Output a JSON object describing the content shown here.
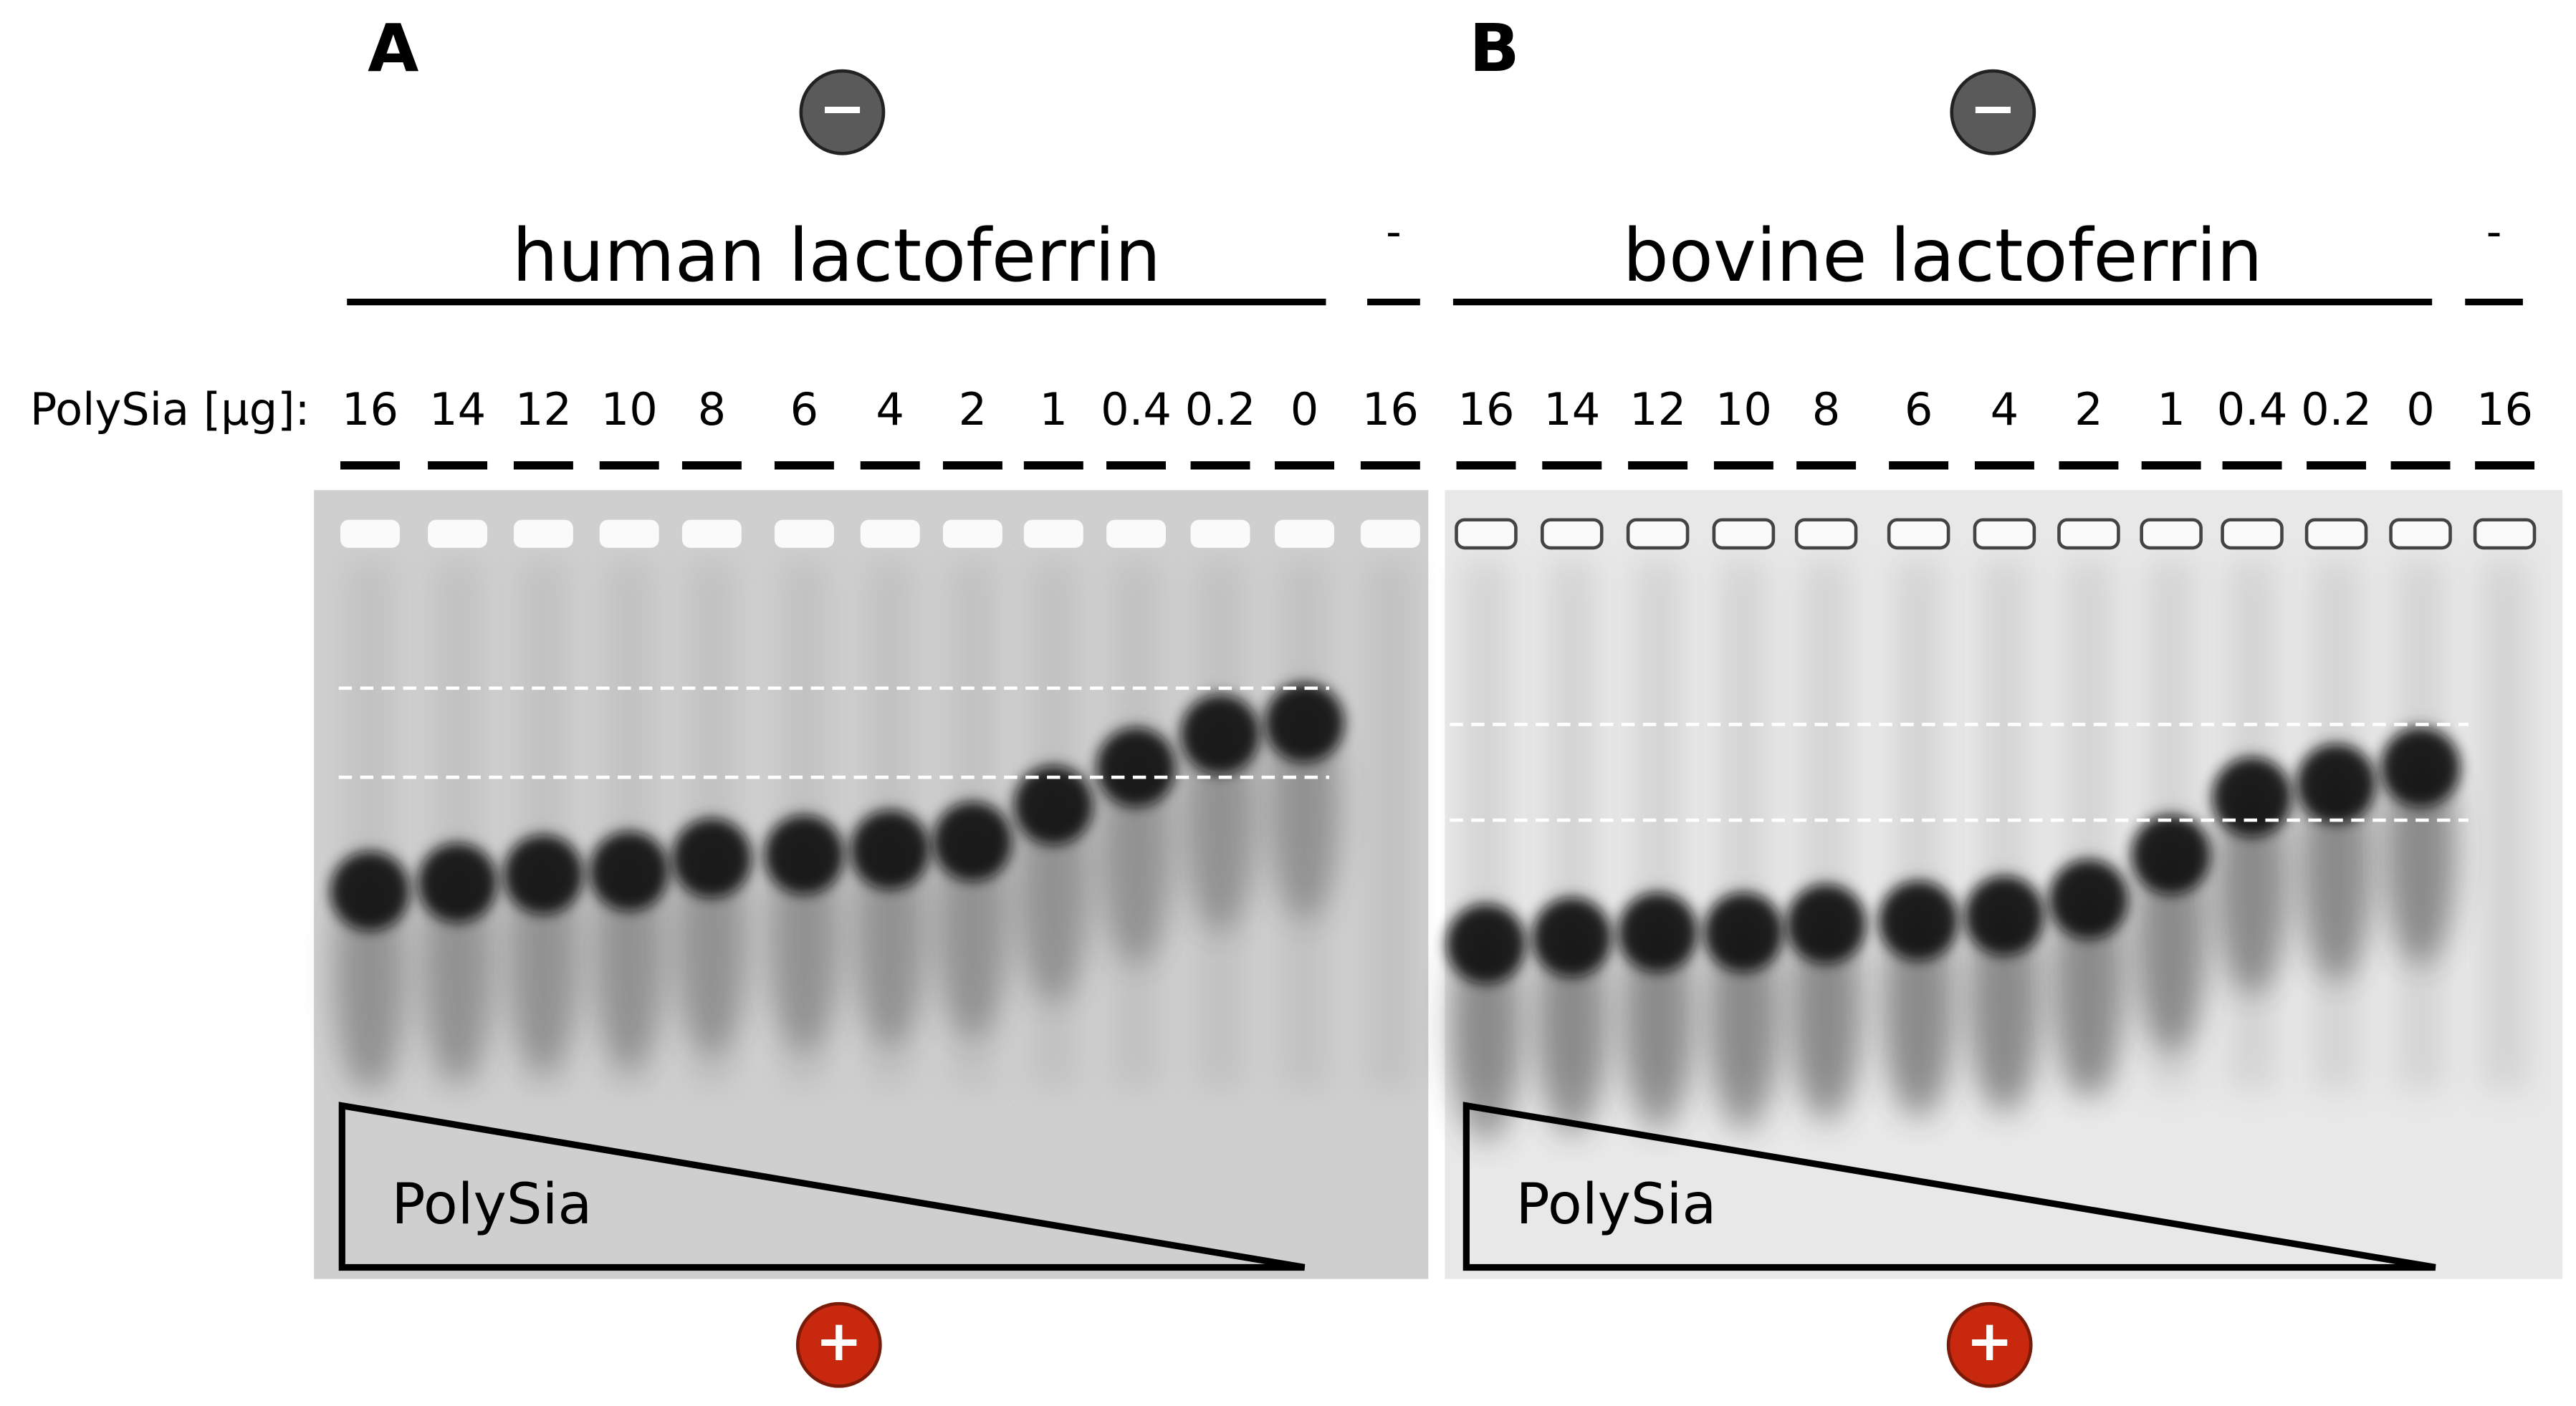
{
  "lane_axis_label": "PolySia [µg]:",
  "panels": [
    {
      "letter": "A",
      "group_label": "human lactoferrin",
      "control_label": "-",
      "lanes": [
        "16",
        "14",
        "12",
        "10",
        "8",
        "6",
        "4",
        "2",
        "1",
        "0.4",
        "0.2",
        "0",
        "16"
      ],
      "gradient_label": "PolySia",
      "cathode": "−",
      "anode": "+"
    },
    {
      "letter": "B",
      "group_label": "bovine lactoferrin",
      "control_label": "-",
      "lanes": [
        "16",
        "14",
        "12",
        "10",
        "8",
        "6",
        "4",
        "2",
        "1",
        "0.4",
        "0.2",
        "0",
        "16"
      ],
      "gradient_label": "PolySia",
      "cathode": "−",
      "anode": "+"
    }
  ]
}
